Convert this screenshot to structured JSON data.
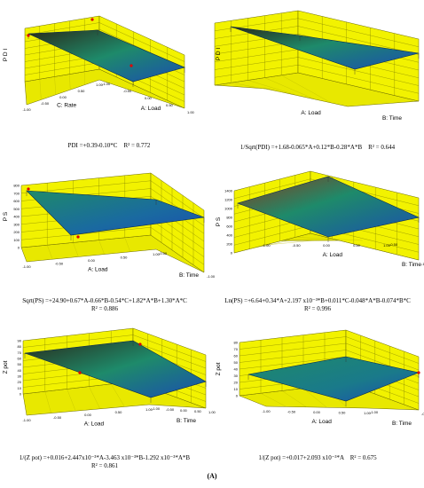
{
  "figure_label": "(A)",
  "colors": {
    "wall": "#f2f200",
    "floor": "#e8e800",
    "grid": "#6b6b00",
    "surface_low": "#1a4fb0",
    "surface_mid": "#1e8a6a",
    "surface_high": "#2a2a1a",
    "design_point": "#e00000"
  },
  "chart_data": [
    {
      "type": "surface3d",
      "zlabel": "P D I",
      "xlabel": "C: Rate",
      "ylabel": "A: Load",
      "zticks": [],
      "xticks": [
        "-1.00",
        "-0.50",
        "0.00",
        "0.50",
        "1.00"
      ],
      "yticks": [
        "-1.00",
        "-0.50",
        "0.00",
        "0.50",
        "1.00"
      ],
      "caption": [
        "PDI =+0.39-0.10*C    R² = 0.772"
      ]
    },
    {
      "type": "surface3d",
      "zlabel": "P D I",
      "xlabel": "A: Load",
      "ylabel": "B: Time",
      "zticks": [],
      "xticks": [],
      "yticks": [],
      "caption": [
        "1/Sqrt(PDI) =+1.68-0.065*A+0.12*B-0.28*A*B    R² = 0.644"
      ]
    },
    {
      "type": "surface3d",
      "zlabel": "P S",
      "xlabel": "A: Load",
      "ylabel": "B: Time",
      "zticks": [
        "0",
        "100",
        "200",
        "300",
        "400",
        "500",
        "600",
        "700",
        "800"
      ],
      "xticks": [
        "-1.00",
        "-0.50",
        "0.00",
        "0.50",
        "1.00"
      ],
      "yticks": [
        "-0.50",
        "-1.00"
      ],
      "caption": [
        "Sqrt(PS) =+24.90+0.67*A-0.66*B-0.54*C+1.82*A*B+1.30*A*C",
        "R² = 0.886"
      ]
    },
    {
      "type": "surface3d",
      "zlabel": "P S",
      "xlabel": "A: Load",
      "ylabel": "B: Time",
      "zticks": [
        "0",
        "200",
        "400",
        "600",
        "800",
        "1000",
        "1200",
        "1400"
      ],
      "xticks": [
        "-1.00",
        "-0.50",
        "0.00",
        "0.50",
        "1.00"
      ],
      "yticks": [
        "-0.50",
        "-1.00"
      ],
      "caption": [
        "Ln(PS) =+6.64+0.34*A+2.197 x10⁻³*B+0.011*C-0.048*A*B-0.074*B*C",
        "R² = 0.996"
      ]
    },
    {
      "type": "surface3d",
      "zlabel": "Z pot",
      "xlabel": "A: Load",
      "ylabel": "B: Time",
      "zticks": [
        "0",
        "10",
        "20",
        "30",
        "40",
        "50",
        "60",
        "70",
        "80",
        "90"
      ],
      "xticks": [
        "-1.00",
        "-0.50",
        "0.00",
        "0.50",
        "1.00"
      ],
      "yticks": [
        "-1.00",
        "-0.50",
        "0.00",
        "0.50",
        "1.00"
      ],
      "caption": [
        "1/(Z pot) =+0.016+2.447x10⁻³*A-3.463 x10⁻³*B-1.292 x10⁻³*A*B",
        "R² = 0.861"
      ]
    },
    {
      "type": "surface3d",
      "zlabel": "Z pot",
      "xlabel": "A: Load",
      "ylabel": "B: Time",
      "zticks": [
        "0",
        "10",
        "20",
        "30",
        "40",
        "50",
        "60",
        "70",
        "80"
      ],
      "xticks": [
        "-1.00",
        "-0.50",
        "0.00",
        "0.50",
        "1.00"
      ],
      "yticks": [
        "-1.00",
        "-0.50"
      ],
      "caption": [
        "1/(Z pot) =+0.017+2.093 x10⁻³*A    R² = 0.675"
      ]
    }
  ]
}
